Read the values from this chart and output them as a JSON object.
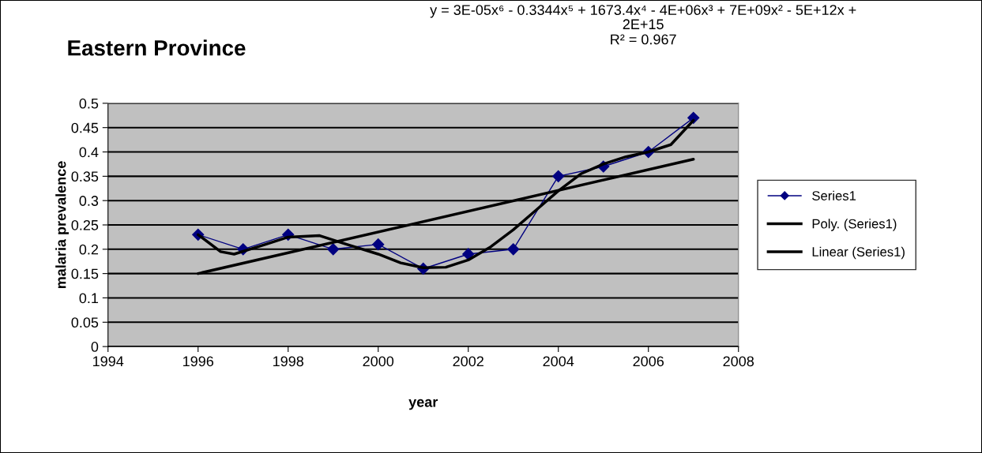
{
  "chart_data": {
    "type": "line",
    "title": "Eastern Province",
    "xlabel": "year",
    "ylabel": "malaria prevalence",
    "annotations": [
      "y = 3E-05x⁶ - 0.3344x⁵ + 1673.4x⁴ - 4E+06x³ + 7E+09x² - 5E+12x +\n2E+15",
      "R² = 0.967"
    ],
    "x": [
      1996,
      1997,
      1998,
      1999,
      2000,
      2001,
      2002,
      2003,
      2004,
      2005,
      2006,
      2007
    ],
    "series": [
      {
        "name": "Series1",
        "color": "#000080",
        "marker": "diamond",
        "values": [
          0.23,
          0.2,
          0.23,
          0.2,
          0.21,
          0.16,
          0.19,
          0.2,
          0.35,
          0.37,
          0.4,
          0.47
        ]
      },
      {
        "name": "Poly. (Series1)",
        "color": "#000000",
        "marker": "none",
        "x": [
          1996,
          1996.5,
          1996.8,
          1997.5,
          1998,
          1998.7,
          1999.3,
          2000,
          2000.5,
          2001,
          2001.5,
          2002,
          2002.5,
          2003,
          2003.5,
          2004,
          2004.5,
          2005,
          2005.5,
          2006,
          2006.5,
          2007
        ],
        "values": [
          0.23,
          0.195,
          0.19,
          0.21,
          0.225,
          0.228,
          0.21,
          0.19,
          0.172,
          0.162,
          0.163,
          0.178,
          0.205,
          0.24,
          0.28,
          0.32,
          0.355,
          0.375,
          0.39,
          0.4,
          0.415,
          0.465
        ]
      },
      {
        "name": "Linear (Series1)",
        "color": "#000000",
        "marker": "none",
        "x": [
          1996,
          2007
        ],
        "values": [
          0.15,
          0.385
        ]
      }
    ],
    "xlim": [
      1994,
      2008
    ],
    "xticks": [
      1994,
      1996,
      1998,
      2000,
      2002,
      2004,
      2006,
      2008
    ],
    "ylim": [
      0,
      0.5
    ],
    "yticks": [
      0,
      0.05,
      0.1,
      0.15,
      0.2,
      0.25,
      0.3,
      0.35,
      0.4,
      0.45,
      0.5
    ],
    "grid": "y",
    "legend": "right",
    "line_style": "solid"
  }
}
